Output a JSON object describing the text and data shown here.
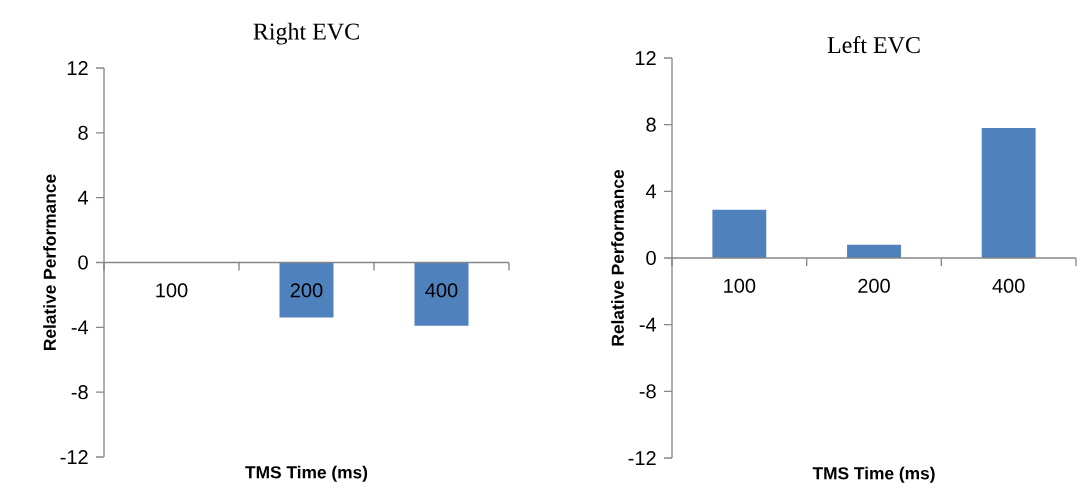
{
  "chart_data": [
    {
      "type": "bar",
      "title": "Right EVC",
      "xlabel": "TMS Time (ms)",
      "ylabel": "Relative Performance",
      "categories": [
        "100",
        "200",
        "400"
      ],
      "values": [
        0,
        -3.4,
        -3.9
      ],
      "color": "#4f81bd",
      "ylim": [
        -12,
        12
      ],
      "yticks": [
        -12,
        -8,
        -4,
        0,
        4,
        8,
        12
      ]
    },
    {
      "type": "bar",
      "title": "Left EVC",
      "xlabel": "TMS Time (ms)",
      "ylabel": "Relative Performance",
      "categories": [
        "100",
        "200",
        "400"
      ],
      "values": [
        2.9,
        0.8,
        7.8
      ],
      "color": "#4f81bd",
      "ylim": [
        -12,
        12
      ],
      "yticks": [
        -12,
        -8,
        -4,
        0,
        4,
        8,
        12
      ]
    }
  ]
}
